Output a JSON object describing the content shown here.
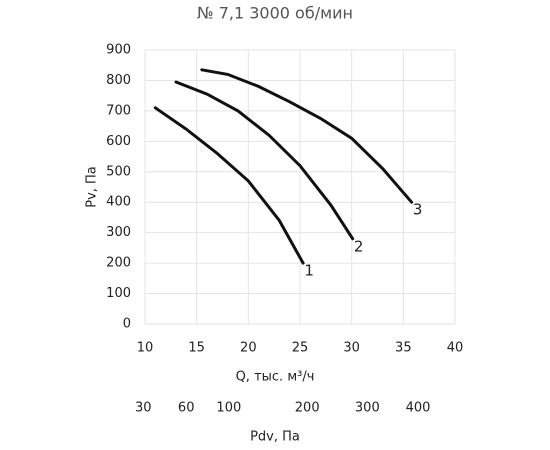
{
  "chart_data": {
    "type": "line",
    "title": "№ 7,1 3000 об/мин",
    "xlabel": "Q, тыс. м³/ч",
    "ylabel": "Pv, Па",
    "x2label": "Pdv, Па",
    "xlim": [
      10,
      40
    ],
    "xticks": [
      10,
      15,
      20,
      25,
      30,
      35,
      40
    ],
    "ylim": [
      0,
      900
    ],
    "yticks": [
      0,
      100,
      200,
      300,
      400,
      500,
      600,
      700,
      800,
      900
    ],
    "x2lim": [
      31,
      482
    ],
    "x2scale": "sqrt",
    "x2ticks": [
      30,
      60,
      100,
      200,
      300,
      400
    ],
    "grid": true,
    "series": [
      {
        "name": "1",
        "color": "#111111",
        "x": [
          11,
          14,
          17,
          20,
          23,
          25.3
        ],
        "values": [
          710,
          640,
          560,
          470,
          340,
          200
        ]
      },
      {
        "name": "2",
        "color": "#111111",
        "x": [
          13,
          16,
          19,
          22,
          25,
          28,
          30.1
        ],
        "values": [
          795,
          755,
          700,
          620,
          520,
          390,
          280
        ]
      },
      {
        "name": "3",
        "color": "#111111",
        "x": [
          15.5,
          18,
          21,
          24,
          27,
          30,
          33,
          35.8
        ],
        "values": [
          835,
          820,
          780,
          730,
          675,
          610,
          510,
          400
        ]
      }
    ]
  }
}
